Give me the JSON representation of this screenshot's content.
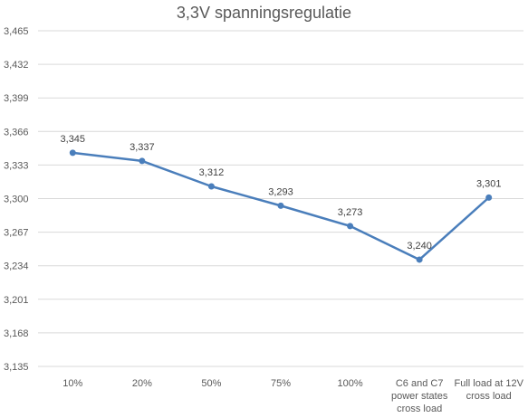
{
  "chart_data": {
    "type": "line",
    "title": "3,3V spanningsregulatie",
    "xlabel": "",
    "ylabel": "",
    "categories": [
      "10%",
      "20%",
      "50%",
      "75%",
      "100%",
      "C6 and C7 power states cross load",
      "Full load at 12V cross load"
    ],
    "category_lines": [
      [
        "10%"
      ],
      [
        "20%"
      ],
      [
        "50%"
      ],
      [
        "75%"
      ],
      [
        "100%"
      ],
      [
        "C6 and C7",
        "power states",
        "cross load"
      ],
      [
        "Full load at 12V",
        "cross load"
      ]
    ],
    "series": [
      {
        "values": [
          3.345,
          3.337,
          3.312,
          3.293,
          3.273,
          3.24,
          3.301
        ],
        "labels": [
          "3,345",
          "3,337",
          "3,312",
          "3,293",
          "3,273",
          "3,240",
          "3,301"
        ],
        "color": "#4a7ebb"
      }
    ],
    "ylim": [
      3.135,
      3.465
    ],
    "yticks": [
      "3,465",
      "3,432",
      "3,399",
      "3,366",
      "3,333",
      "3,300",
      "3,267",
      "3,234",
      "3,201",
      "3,168",
      "3,135"
    ],
    "grid": true,
    "legend": "none"
  }
}
